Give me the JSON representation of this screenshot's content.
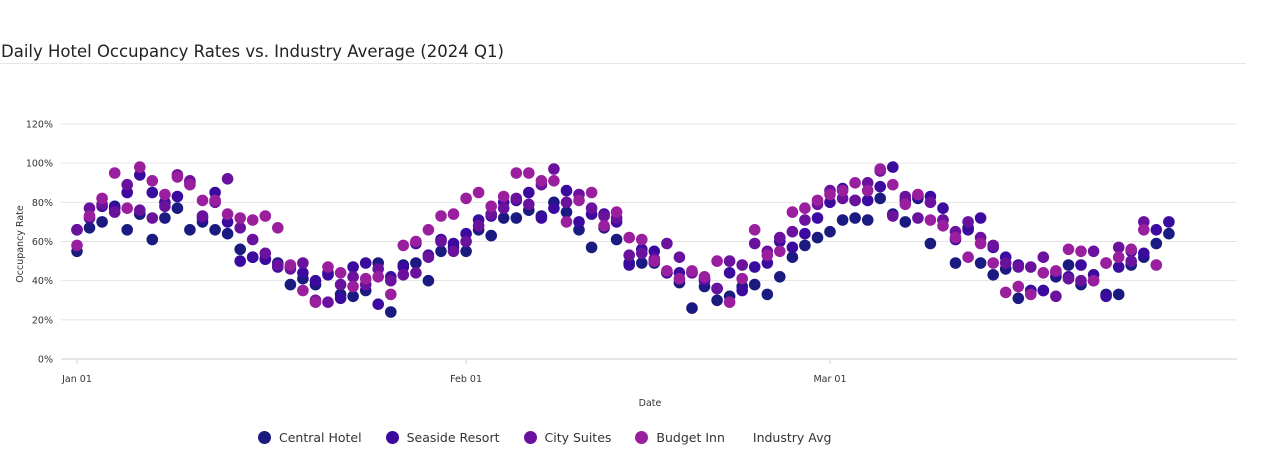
{
  "header": {
    "title": "Daily Hotel Occupancy Rates vs. Industry Average (2024 Q1)"
  },
  "chart_data": {
    "type": "scatter",
    "title": "Daily Hotel Occupancy Rates vs. Industry Average (2024 Q1)",
    "xlabel": "Date",
    "ylabel": "Occupancy Rate",
    "x_ticks": [
      "Jan 01",
      "Feb 01",
      "Mar 01"
    ],
    "y_ticks": [
      "0%",
      "20%",
      "40%",
      "60%",
      "80%",
      "100%",
      "120%"
    ],
    "ylim": [
      0,
      1.2
    ],
    "x_start": "2024-01-01",
    "x_end": "2024-03-31",
    "grid": true,
    "legend_position": "bottom",
    "series": [
      {
        "name": "Central Hotel",
        "color": "#1a1a80",
        "values": [
          0.55,
          0.67,
          0.7,
          0.78,
          0.66,
          0.74,
          0.61,
          0.72,
          0.77,
          0.66,
          0.7,
          0.66,
          0.64,
          0.56,
          0.52,
          0.51,
          0.49,
          0.38,
          0.41,
          0.38,
          0.44,
          0.33,
          0.32,
          0.35,
          0.49,
          0.24,
          0.48,
          0.49,
          0.4,
          0.55,
          0.57,
          0.55,
          0.66,
          0.63,
          0.72,
          0.72,
          0.76,
          0.73,
          0.8,
          0.75,
          0.66,
          0.57,
          0.67,
          0.61,
          0.49,
          0.49,
          0.49,
          0.44,
          0.39,
          0.26,
          0.37,
          0.3,
          0.32,
          0.37,
          0.38,
          0.33,
          0.42,
          0.52,
          0.58,
          0.62,
          0.65,
          0.71,
          0.72,
          0.71,
          0.82,
          0.74,
          0.7,
          0.82,
          0.59,
          0.71,
          0.49,
          0.67,
          0.49,
          0.43,
          0.46,
          0.31,
          0.35,
          0.35,
          0.42,
          0.48,
          0.38,
          0.4,
          0.33,
          0.33,
          0.48,
          0.52,
          0.59,
          0.64
        ]
      },
      {
        "name": "Seaside Resort",
        "color": "#3b0a9e",
        "values": [
          0.66,
          0.72,
          0.78,
          0.77,
          0.85,
          0.94,
          0.85,
          0.8,
          0.83,
          0.9,
          0.72,
          0.85,
          0.7,
          0.5,
          0.52,
          0.51,
          0.47,
          0.47,
          0.44,
          0.4,
          0.43,
          0.31,
          0.47,
          0.49,
          0.28,
          0.42,
          0.47,
          0.59,
          0.53,
          0.61,
          0.59,
          0.64,
          0.71,
          0.73,
          0.8,
          0.81,
          0.85,
          0.72,
          0.77,
          0.86,
          0.7,
          0.74,
          0.74,
          0.7,
          0.48,
          0.56,
          0.55,
          0.44,
          0.44,
          0.44,
          0.4,
          0.36,
          0.44,
          0.35,
          0.47,
          0.49,
          0.6,
          0.57,
          0.64,
          0.72,
          0.8,
          0.87,
          0.81,
          0.81,
          0.88,
          0.98,
          0.81,
          0.83,
          0.83,
          0.77,
          0.61,
          0.66,
          0.72,
          0.57,
          0.52,
          0.48,
          0.35,
          0.35,
          0.44,
          0.42,
          0.48,
          0.43,
          0.32,
          0.47,
          0.55,
          0.54,
          0.66,
          0.7
        ]
      },
      {
        "name": "City Suites",
        "color": "#6a119e",
        "values": [
          0.66,
          0.77,
          0.79,
          0.75,
          0.89,
          0.76,
          0.72,
          0.78,
          0.94,
          0.91,
          0.73,
          0.8,
          0.92,
          0.67,
          0.61,
          0.54,
          0.48,
          0.46,
          0.49,
          0.3,
          0.29,
          0.38,
          0.42,
          0.38,
          0.46,
          0.4,
          0.43,
          0.44,
          0.52,
          0.6,
          0.55,
          0.6,
          0.68,
          0.74,
          0.77,
          0.82,
          0.79,
          0.89,
          0.97,
          0.8,
          0.84,
          0.77,
          0.73,
          0.72,
          0.53,
          0.54,
          0.51,
          0.59,
          0.52,
          0.44,
          0.41,
          0.36,
          0.5,
          0.48,
          0.59,
          0.55,
          0.62,
          0.65,
          0.71,
          0.79,
          0.86,
          0.82,
          0.81,
          0.9,
          0.96,
          0.73,
          0.83,
          0.72,
          0.8,
          0.71,
          0.65,
          0.7,
          0.62,
          0.58,
          0.49,
          0.47,
          0.47,
          0.52,
          0.32,
          0.41,
          0.4,
          0.55,
          0.49,
          0.57,
          0.5,
          0.7
        ]
      },
      {
        "name": "Budget Inn",
        "color": "#9a1f9e",
        "values": [
          0.58,
          0.73,
          0.82,
          0.95,
          0.77,
          0.98,
          0.91,
          0.84,
          0.93,
          0.89,
          0.81,
          0.81,
          0.74,
          0.72,
          0.71,
          0.73,
          0.67,
          0.48,
          0.35,
          0.29,
          0.47,
          0.44,
          0.37,
          0.41,
          0.42,
          0.33,
          0.58,
          0.6,
          0.66,
          0.73,
          0.74,
          0.82,
          0.85,
          0.78,
          0.83,
          0.95,
          0.95,
          0.91,
          0.91,
          0.7,
          0.81,
          0.85,
          0.68,
          0.75,
          0.62,
          0.61,
          0.5,
          0.45,
          0.41,
          0.45,
          0.42,
          0.5,
          0.29,
          0.41,
          0.66,
          0.53,
          0.55,
          0.75,
          0.77,
          0.81,
          0.84,
          0.86,
          0.9,
          0.86,
          0.97,
          0.89,
          0.79,
          0.84,
          0.71,
          0.68,
          0.62,
          0.52,
          0.59,
          0.49,
          0.34,
          0.37,
          0.33,
          0.44,
          0.45,
          0.56,
          0.55,
          0.4,
          0.49,
          0.52,
          0.56,
          0.66,
          0.48
        ]
      }
    ],
    "extra_legend_entries": [
      "Industry Avg"
    ]
  },
  "legend": {
    "items": [
      {
        "label": "Central Hotel",
        "color": "#1a1a80"
      },
      {
        "label": "Seaside Resort",
        "color": "#3b0a9e"
      },
      {
        "label": "City Suites",
        "color": "#6a119e"
      },
      {
        "label": "Budget Inn",
        "color": "#9a1f9e"
      }
    ],
    "industry_avg_label": "Industry Avg"
  }
}
